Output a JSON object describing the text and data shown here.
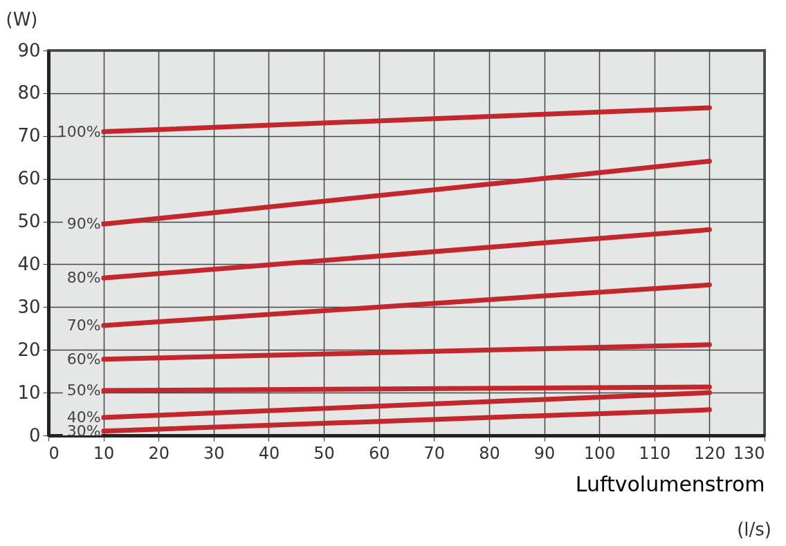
{
  "chart_data": {
    "type": "line",
    "xlabel": "Luftvolumenstrom",
    "ylabel": "(W)",
    "annotations": [
      "(l/s)"
    ],
    "xlim": [
      0,
      130
    ],
    "xticks": [
      0,
      10,
      20,
      30,
      40,
      50,
      60,
      70,
      80,
      90,
      100,
      110,
      120,
      130
    ],
    "ylim": [
      0,
      90
    ],
    "yticks": [
      0,
      10,
      20,
      30,
      40,
      50,
      60,
      70,
      80,
      90
    ],
    "grid": true,
    "legend": false,
    "marker": "none",
    "line_style": "solid",
    "x": [
      10,
      120
    ],
    "series": [
      {
        "name": "100%",
        "color": "#c1272d",
        "values": [
          71,
          76.6
        ]
      },
      {
        "name": "90%",
        "color": "#c1272d",
        "values": [
          49.4,
          64.1
        ]
      },
      {
        "name": "80%",
        "color": "#c1272d",
        "values": [
          36.8,
          48.1
        ]
      },
      {
        "name": "70%",
        "color": "#c1272d",
        "values": [
          25.7,
          35.2
        ]
      },
      {
        "name": "60%",
        "color": "#c1272d",
        "values": [
          17.8,
          21.2
        ]
      },
      {
        "name": "50%",
        "color": "#c1272d",
        "values": [
          10.5,
          11.3
        ]
      },
      {
        "name": "40%",
        "color": "#c1272d",
        "values": [
          4.2,
          10
        ]
      },
      {
        "name": "30%",
        "color": "#c1272d",
        "values": [
          1,
          6
        ]
      }
    ]
  }
}
